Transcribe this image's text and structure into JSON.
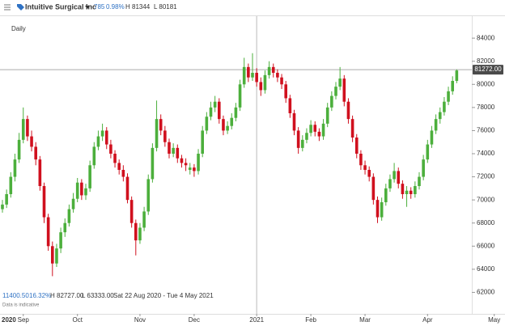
{
  "header": {
    "instrument": "Intuitive Surgical Inc",
    "change": "785",
    "change_percent": "0.98%",
    "high": "H 81344",
    "low": "L 80181"
  },
  "interval": "Daily",
  "footer": {
    "range_change": "11400.50",
    "range_percent": "16.32%",
    "range_high": "H 82727.00",
    "range_low": "L 63333.00",
    "date_range": "Sat 22 Aug 2020 - Tue 4 May 2021",
    "note": "Data is indicative"
  },
  "chart_data": {
    "type": "candlestick",
    "up_color": "#4caf3c",
    "down_color": "#d0101e",
    "year_label": "2020",
    "xticks": [
      {
        "value": 5,
        "label": "Sep"
      },
      {
        "value": 18,
        "label": "Oct"
      },
      {
        "value": 33,
        "label": "Nov"
      },
      {
        "value": 46,
        "label": "Dec"
      },
      {
        "value": 61,
        "label": "2021"
      },
      {
        "value": 74,
        "label": "Feb"
      },
      {
        "value": 87,
        "label": "Mar"
      },
      {
        "value": 102,
        "label": "Apr"
      },
      {
        "value": 118,
        "label": "May"
      }
    ],
    "ylim": [
      60700,
      85900
    ],
    "yticks": [
      62000,
      64000,
      66000,
      68000,
      70000,
      72000,
      74000,
      76000,
      78000,
      80000,
      82000,
      84000
    ],
    "last_price": {
      "value": 81272,
      "label": "81272.00"
    },
    "open": [
      69200,
      69600,
      70500,
      72000,
      73500,
      75200,
      77000,
      75500,
      74600,
      73500,
      71200,
      68500,
      66000,
      64500,
      65800,
      67200,
      68000,
      69200,
      70100,
      71500,
      70400,
      71000,
      73000,
      74600,
      75500,
      76000,
      74800,
      74000,
      73200,
      72600,
      72000,
      70000,
      68000,
      66500,
      67600,
      69000,
      71800,
      74500,
      77000,
      76000,
      75000,
      74000,
      74500,
      73600,
      73200,
      72600,
      72800,
      72500,
      74000,
      76000,
      77200,
      78000,
      78500,
      77000,
      76000,
      76400,
      77100,
      78000,
      80000,
      81500,
      80600,
      81000,
      80200,
      79500,
      80800,
      81500,
      81000,
      80600,
      80000,
      78800,
      77500,
      76000,
      74500,
      75200,
      75800,
      76500,
      75900,
      75500,
      76600,
      78000,
      79000,
      79800,
      80500,
      78500,
      77000,
      75400,
      74000,
      73000,
      72600,
      72000,
      70000,
      68500,
      69800,
      71000,
      71800,
      72500,
      71400,
      70500,
      70800,
      70500,
      71200,
      72000,
      73500,
      74800,
      76000,
      77000,
      77600,
      78500,
      79400,
      80300
    ],
    "high": [
      70000,
      70900,
      72400,
      74000,
      75800,
      78000,
      77300,
      76000,
      75000,
      73800,
      71500,
      68800,
      66400,
      66200,
      67600,
      68400,
      69600,
      70600,
      71900,
      71800,
      71400,
      73400,
      75000,
      76000,
      76600,
      76300,
      75200,
      74300,
      73500,
      73000,
      72300,
      70300,
      68300,
      68000,
      69400,
      72200,
      74900,
      78600,
      77400,
      76400,
      75300,
      74900,
      74800,
      73900,
      73600,
      73200,
      73100,
      74400,
      76400,
      77600,
      78500,
      79000,
      78800,
      77300,
      76800,
      77500,
      78400,
      80400,
      82300,
      81800,
      82700,
      81400,
      80600,
      81200,
      82000,
      81800,
      81300,
      80900,
      80300,
      79100,
      77800,
      76300,
      75600,
      76200,
      76900,
      76800,
      76200,
      77000,
      78400,
      79400,
      80200,
      81500,
      80800,
      78800,
      77300,
      75700,
      74300,
      73400,
      72900,
      72300,
      70300,
      70200,
      71400,
      72200,
      73200,
      72800,
      71700,
      71200,
      71100,
      71600,
      72400,
      73900,
      75200,
      76400,
      77400,
      78000,
      78900,
      79800,
      80700,
      81300
    ],
    "low": [
      68900,
      69300,
      70200,
      71600,
      73200,
      74900,
      75100,
      74200,
      73000,
      70800,
      68000,
      65600,
      63400,
      64200,
      65400,
      66800,
      67700,
      68900,
      69800,
      70000,
      70000,
      70700,
      72700,
      74300,
      75100,
      74400,
      73600,
      72800,
      72200,
      71600,
      69700,
      67600,
      65200,
      66200,
      67300,
      68700,
      71500,
      74200,
      75600,
      74600,
      73600,
      73700,
      73200,
      72800,
      72500,
      72200,
      72000,
      72200,
      73700,
      75700,
      76900,
      77600,
      76600,
      75600,
      75700,
      76100,
      76800,
      77700,
      79700,
      80200,
      80300,
      79800,
      79000,
      79200,
      80500,
      80600,
      80200,
      79600,
      78400,
      77100,
      75600,
      74000,
      74200,
      74900,
      75500,
      75500,
      75100,
      75200,
      76300,
      77700,
      78700,
      79500,
      78100,
      76600,
      75000,
      73600,
      72600,
      72200,
      71600,
      69600,
      68000,
      68200,
      69500,
      70700,
      71500,
      71000,
      70100,
      69400,
      70100,
      70200,
      70900,
      71700,
      73200,
      74500,
      75700,
      76600,
      77300,
      78200,
      79100,
      80100
    ],
    "close": [
      69600,
      70500,
      72000,
      73500,
      75200,
      77000,
      75500,
      74600,
      73500,
      71200,
      68500,
      66000,
      64500,
      65800,
      67200,
      68000,
      69200,
      70100,
      71500,
      70400,
      71000,
      73000,
      74600,
      75500,
      76000,
      74800,
      74000,
      73200,
      72600,
      72000,
      70000,
      68000,
      66500,
      67600,
      69000,
      71800,
      74500,
      77000,
      76000,
      75000,
      74000,
      74500,
      73600,
      73200,
      73000,
      72800,
      72500,
      74000,
      76000,
      77200,
      78000,
      78500,
      77000,
      76000,
      76400,
      77100,
      78000,
      80000,
      81500,
      80600,
      81000,
      80200,
      79500,
      80800,
      81500,
      81000,
      80600,
      80000,
      78800,
      77500,
      76000,
      74500,
      75200,
      75800,
      76500,
      75900,
      75500,
      76600,
      78000,
      79000,
      79800,
      80500,
      78500,
      77000,
      75400,
      74000,
      73000,
      72600,
      72000,
      70000,
      68500,
      69800,
      71000,
      71800,
      72500,
      71400,
      70500,
      70800,
      70500,
      71200,
      72000,
      73500,
      74800,
      76000,
      77000,
      77600,
      78500,
      79400,
      80300,
      81200
    ]
  }
}
